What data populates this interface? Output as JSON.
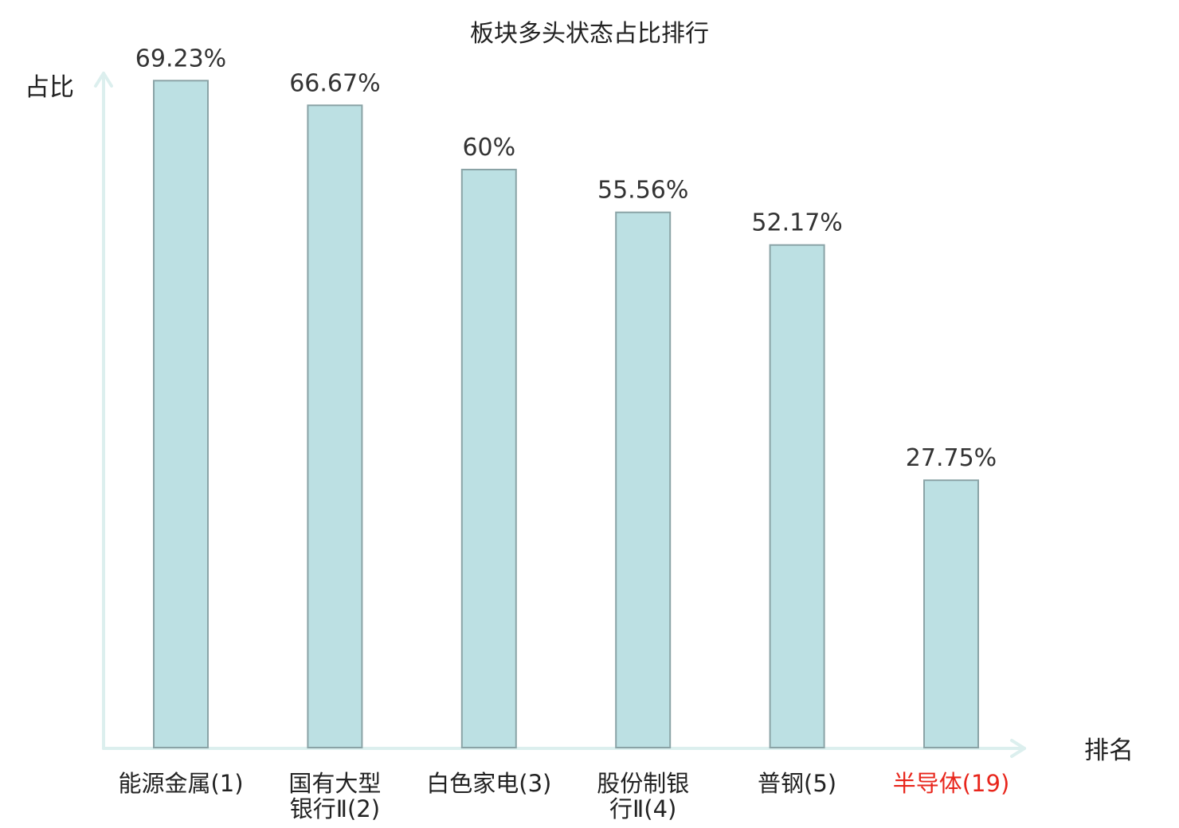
{
  "chart_data": {
    "type": "bar",
    "title": "板块多头状态占比排行",
    "ylabel": "占比",
    "xlabel": "排名",
    "ylim": [
      0,
      80
    ],
    "categories": [
      {
        "lines": [
          "能源金属(1)"
        ],
        "highlight": false
      },
      {
        "lines": [
          "国有大型",
          "银行Ⅱ(2)"
        ],
        "highlight": false
      },
      {
        "lines": [
          "白色家电(3)"
        ],
        "highlight": false
      },
      {
        "lines": [
          "股份制银",
          "行Ⅱ(4)"
        ],
        "highlight": false
      },
      {
        "lines": [
          "普钢(5)"
        ],
        "highlight": false
      },
      {
        "lines": [
          "半导体(19)"
        ],
        "highlight": true
      }
    ],
    "values": [
      69.23,
      66.67,
      60,
      55.56,
      52.17,
      27.75
    ],
    "value_labels": [
      "69.23%",
      "66.67%",
      "60%",
      "55.56%",
      "52.17%",
      "27.75%"
    ],
    "colors": {
      "bar_fill": "#bce0e3",
      "bar_stroke": "#8aa3a6",
      "axis": "#dcefee",
      "highlight_text": "#e8261c"
    },
    "grid": false,
    "legend": "none"
  }
}
